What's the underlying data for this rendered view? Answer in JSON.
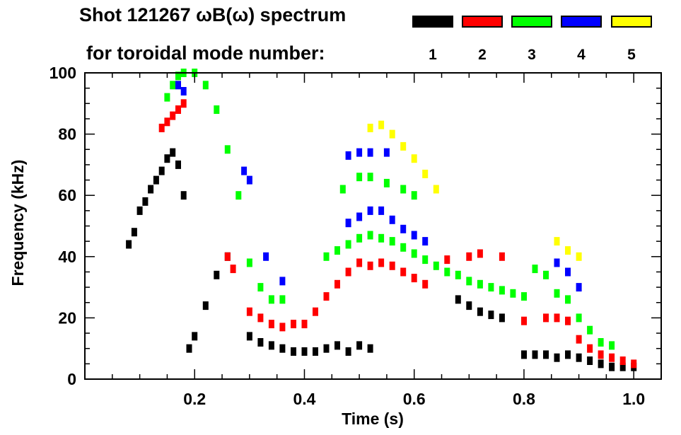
{
  "chart_data": {
    "type": "scatter",
    "title_line1": "Shot 121267 ωB(ω) spectrum",
    "title_line2": "for toroidal mode number:",
    "xlabel": "Time (s)",
    "ylabel": "Frequency (kHz)",
    "xlim": [
      0.0,
      1.05
    ],
    "ylim": [
      0,
      100
    ],
    "xticks": [
      0.2,
      0.4,
      0.6,
      0.8,
      1.0
    ],
    "xtick_labels": [
      "0.2",
      "0.4",
      "0.6",
      "0.8",
      "1.0"
    ],
    "yticks": [
      0,
      20,
      40,
      60,
      80,
      100
    ],
    "ytick_labels": [
      "0",
      "20",
      "40",
      "60",
      "80",
      "100"
    ],
    "legend": [
      {
        "label": "1",
        "color": "#000000"
      },
      {
        "label": "2",
        "color": "#ff0000"
      },
      {
        "label": "3",
        "color": "#00ff00"
      },
      {
        "label": "4",
        "color": "#0000ff"
      },
      {
        "label": "5",
        "color": "#ffff00"
      }
    ],
    "series": [
      {
        "name": "n=1",
        "mode": 1,
        "color": "#000000",
        "x": [
          0.08,
          0.09,
          0.1,
          0.11,
          0.12,
          0.13,
          0.14,
          0.15,
          0.16,
          0.17,
          0.18,
          0.19,
          0.2,
          0.22,
          0.24,
          0.26,
          0.3,
          0.32,
          0.34,
          0.36,
          0.38,
          0.4,
          0.42,
          0.44,
          0.46,
          0.48,
          0.5,
          0.52,
          0.68,
          0.7,
          0.72,
          0.74,
          0.76,
          0.8,
          0.82,
          0.84,
          0.86,
          0.88,
          0.9,
          0.92,
          0.94,
          0.96,
          0.98,
          1.0
        ],
        "y": [
          44,
          48,
          55,
          58,
          62,
          65,
          68,
          72,
          74,
          70,
          60,
          10,
          14,
          24,
          34,
          40,
          14,
          12,
          11,
          10,
          9,
          9,
          9,
          10,
          11,
          9,
          11,
          10,
          26,
          24,
          22,
          21,
          20,
          8,
          8,
          8,
          7,
          8,
          7,
          6,
          5,
          4,
          4,
          4
        ]
      },
      {
        "name": "n=2",
        "mode": 2,
        "color": "#ff0000",
        "x": [
          0.14,
          0.15,
          0.16,
          0.17,
          0.18,
          0.26,
          0.27,
          0.3,
          0.32,
          0.34,
          0.36,
          0.38,
          0.4,
          0.42,
          0.44,
          0.46,
          0.48,
          0.5,
          0.52,
          0.54,
          0.56,
          0.58,
          0.6,
          0.62,
          0.66,
          0.7,
          0.72,
          0.76,
          0.8,
          0.84,
          0.86,
          0.88,
          0.9,
          0.92,
          0.94,
          0.96,
          0.98,
          1.0
        ],
        "y": [
          82,
          84,
          86,
          88,
          90,
          40,
          36,
          22,
          20,
          18,
          17,
          18,
          18,
          22,
          27,
          31,
          35,
          38,
          37,
          38,
          37,
          35,
          33,
          31,
          39,
          40,
          41,
          40,
          19,
          20,
          20,
          19,
          13,
          10,
          8,
          7,
          6,
          5
        ]
      },
      {
        "name": "n=3",
        "mode": 3,
        "color": "#00ff00",
        "x": [
          0.15,
          0.16,
          0.17,
          0.18,
          0.2,
          0.22,
          0.24,
          0.26,
          0.28,
          0.3,
          0.32,
          0.34,
          0.36,
          0.44,
          0.46,
          0.48,
          0.5,
          0.52,
          0.54,
          0.56,
          0.58,
          0.6,
          0.62,
          0.64,
          0.66,
          0.68,
          0.7,
          0.72,
          0.74,
          0.76,
          0.78,
          0.8,
          0.82,
          0.84,
          0.86,
          0.88,
          0.9,
          0.92,
          0.94,
          0.96,
          0.47,
          0.5,
          0.52,
          0.55,
          0.58,
          0.6
        ],
        "y": [
          92,
          96,
          99,
          100,
          100,
          96,
          88,
          75,
          60,
          38,
          30,
          26,
          26,
          40,
          42,
          44,
          46,
          47,
          46,
          45,
          43,
          41,
          39,
          37,
          35,
          34,
          32,
          31,
          30,
          29,
          28,
          27,
          36,
          34,
          28,
          26,
          20,
          16,
          12,
          11,
          62,
          66,
          66,
          64,
          62,
          60
        ]
      },
      {
        "name": "n=4",
        "mode": 4,
        "color": "#0000ff",
        "x": [
          0.17,
          0.18,
          0.29,
          0.3,
          0.33,
          0.36,
          0.48,
          0.5,
          0.52,
          0.54,
          0.56,
          0.58,
          0.6,
          0.62,
          0.48,
          0.5,
          0.52,
          0.55,
          0.86,
          0.88,
          0.9
        ],
        "y": [
          96,
          94,
          68,
          65,
          40,
          32,
          51,
          53,
          55,
          55,
          52,
          49,
          47,
          45,
          73,
          74,
          74,
          74,
          38,
          35,
          30
        ]
      },
      {
        "name": "n=5",
        "mode": 5,
        "color": "#ffff00",
        "x": [
          0.52,
          0.54,
          0.56,
          0.58,
          0.6,
          0.62,
          0.64,
          0.86,
          0.88,
          0.9
        ],
        "y": [
          82,
          83,
          80,
          76,
          72,
          67,
          62,
          45,
          42,
          40
        ]
      }
    ]
  }
}
